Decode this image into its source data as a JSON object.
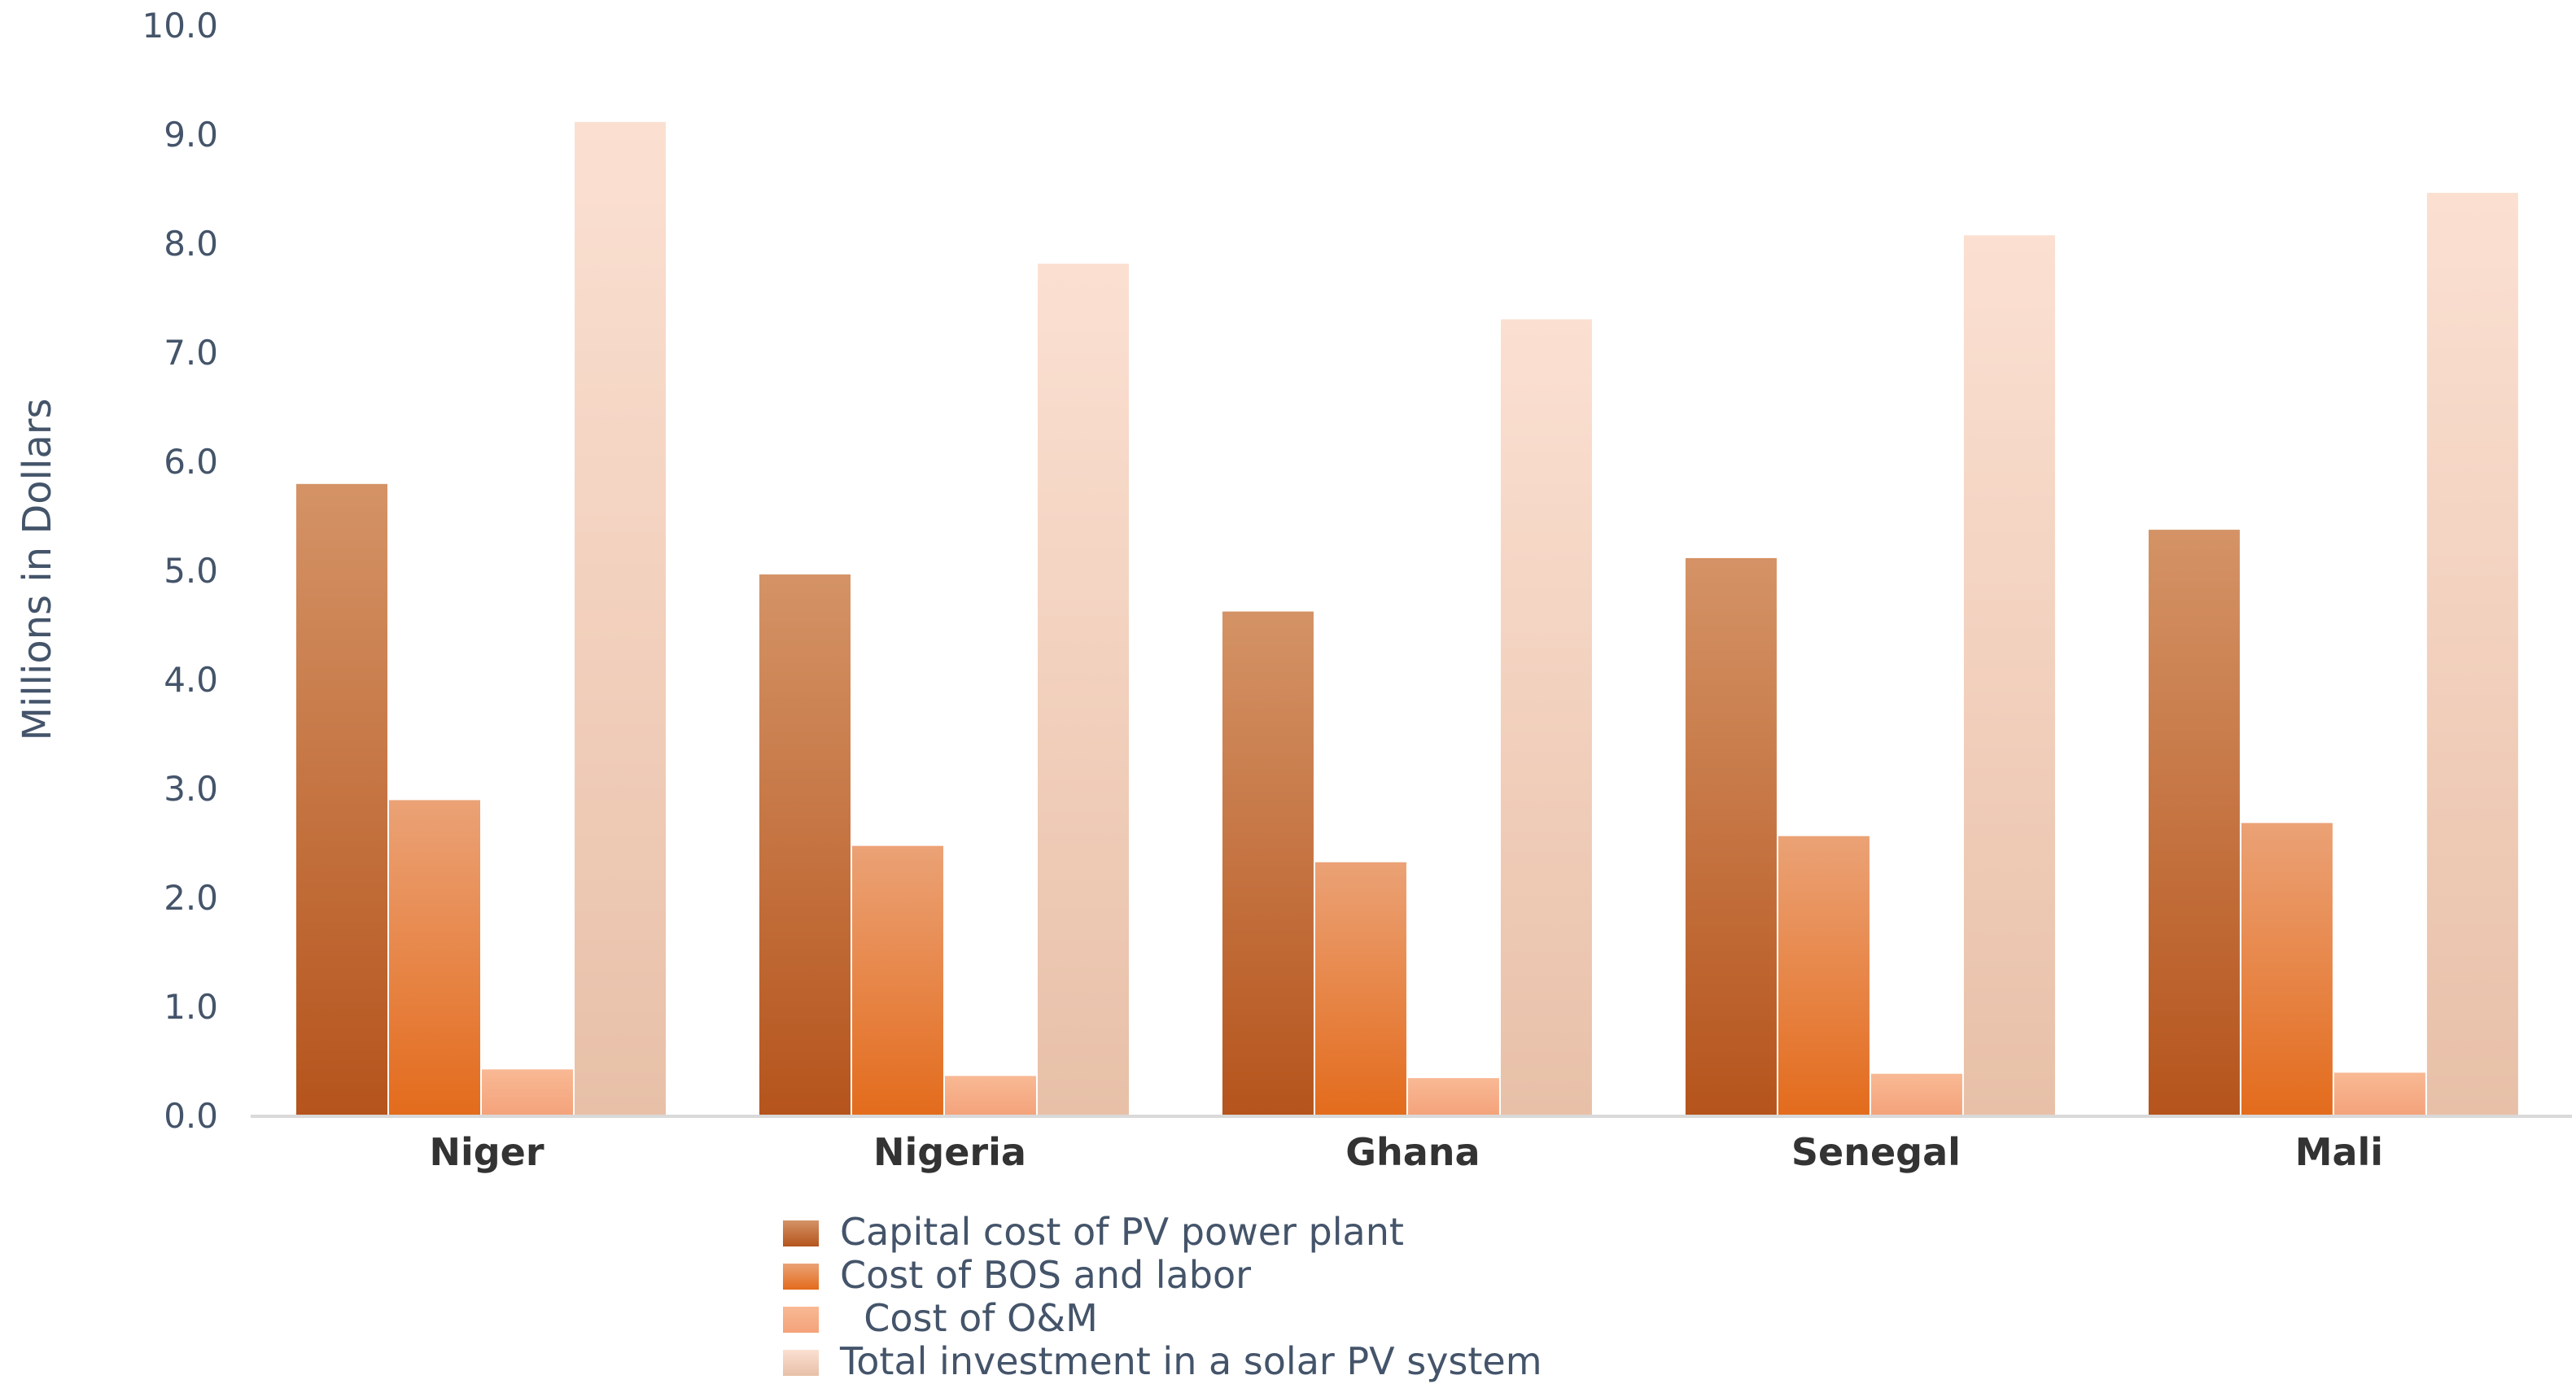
{
  "chart_data": {
    "type": "bar",
    "categories": [
      "Niger",
      "Nigeria",
      "Ghana",
      "Senegal",
      "Mali"
    ],
    "series": [
      {
        "name": "Capital cost of PV power plant",
        "values": [
          5.8,
          4.97,
          4.63,
          5.12,
          5.38
        ],
        "color_top": "#d49366",
        "color_bottom": "#b5541c"
      },
      {
        "name": "Cost of BOS and labor",
        "values": [
          2.9,
          2.48,
          2.33,
          2.57,
          2.69
        ],
        "color_top": "#eba276",
        "color_bottom": "#e36b1c"
      },
      {
        "name": "  Cost of O&M",
        "values": [
          0.43,
          0.37,
          0.35,
          0.39,
          0.4
        ],
        "color_top": "#f8b994",
        "color_bottom": "#f4a27a"
      },
      {
        "name": "Total investment in a solar PV system",
        "values": [
          9.12,
          7.82,
          7.31,
          8.08,
          8.47
        ],
        "color_top": "#fbe0d2",
        "color_bottom": "#e8c0a8"
      }
    ],
    "ylabel": "Millions in Dollars",
    "xlabel": "",
    "ylim": [
      0,
      10
    ],
    "yticks": [
      "0.0",
      "1.0",
      "2.0",
      "3.0",
      "4.0",
      "5.0",
      "6.0",
      "7.0",
      "8.0",
      "9.0",
      "10.0"
    ],
    "grid": false,
    "legend_position": "bottom-center"
  }
}
